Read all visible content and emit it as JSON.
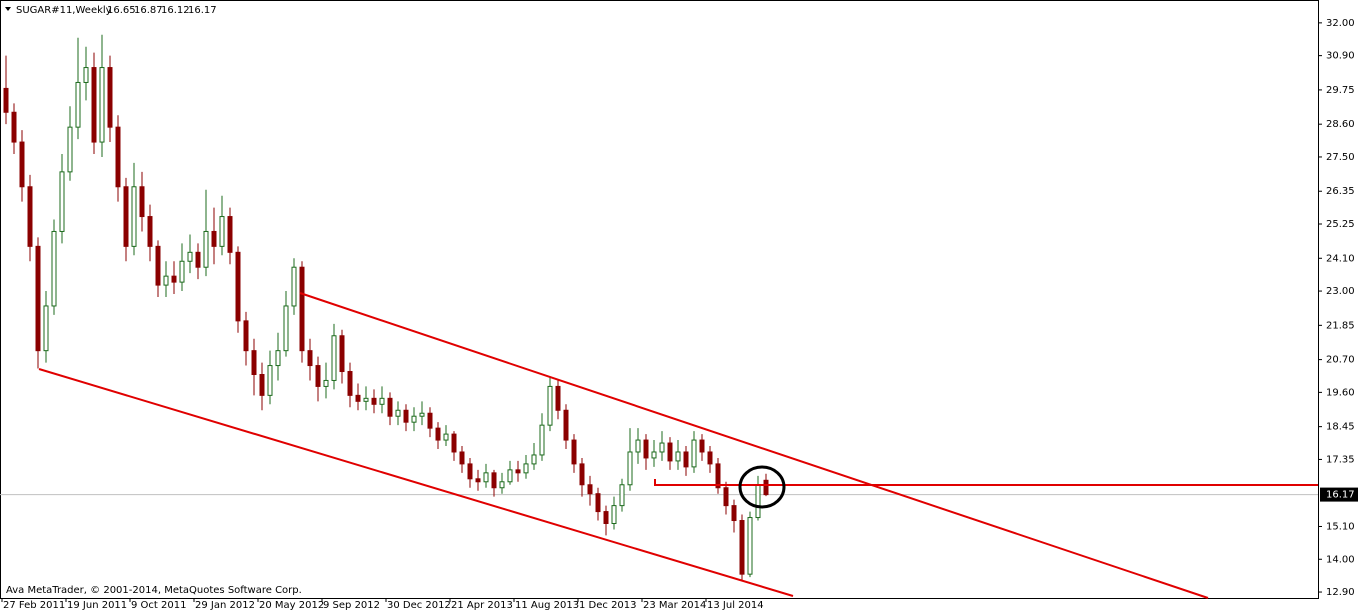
{
  "chart_data": {
    "type": "candlestick",
    "title": "SUGAR#11,Weekly",
    "ohlc": [
      16.65,
      16.87,
      16.12,
      16.17
    ],
    "last_price": 16.17,
    "footer": "Ava MetaTrader, © 2001-2014, MetaQuotes Software Corp.",
    "up_color": "#1d6b1d",
    "down_color": "#8b0000",
    "ylim": [
      12.7,
      32.7
    ],
    "yticks": [
      {
        "value": 12.9,
        "label": "12.90"
      },
      {
        "value": 14,
        "label": "14.00"
      },
      {
        "value": 15.1,
        "label": "15.10"
      },
      {
        "value": 17.35,
        "label": "17.35"
      },
      {
        "value": 18.45,
        "label": "18.45"
      },
      {
        "value": 19.6,
        "label": "19.60"
      },
      {
        "value": 20.7,
        "label": "20.70"
      },
      {
        "value": 21.85,
        "label": "21.85"
      },
      {
        "value": 23,
        "label": "23.00"
      },
      {
        "value": 24.1,
        "label": "24.10"
      },
      {
        "value": 25.25,
        "label": "25.25"
      },
      {
        "value": 26.35,
        "label": "26.35"
      },
      {
        "value": 27.5,
        "label": "27.50"
      },
      {
        "value": 28.6,
        "label": "28.60"
      },
      {
        "value": 29.75,
        "label": "29.75"
      },
      {
        "value": 30.9,
        "label": "30.90"
      },
      {
        "value": 32,
        "label": "32.00"
      }
    ],
    "categories": [
      "27 Feb 2011",
      null,
      null,
      null,
      null,
      null,
      null,
      null,
      "19 Jun 2011",
      null,
      null,
      null,
      null,
      null,
      null,
      null,
      "9 Oct 2011",
      null,
      null,
      null,
      null,
      null,
      null,
      null,
      "29 Jan 2012",
      null,
      null,
      null,
      null,
      null,
      null,
      null,
      "20 May 2012",
      null,
      null,
      null,
      null,
      null,
      null,
      null,
      "9 Sep 2012",
      null,
      null,
      null,
      null,
      null,
      null,
      null,
      "30 Dec 2012",
      null,
      null,
      null,
      null,
      null,
      null,
      null,
      "21 Apr 2013",
      null,
      null,
      null,
      null,
      null,
      null,
      null,
      "11 Aug 2013",
      null,
      null,
      null,
      null,
      null,
      null,
      null,
      "1 Dec 2013",
      null,
      null,
      null,
      null,
      null,
      null,
      null,
      "23 Mar 2014",
      null,
      null,
      null,
      null,
      null,
      null,
      null,
      "13 Jul 2014",
      null,
      null,
      null,
      null,
      null,
      null,
      null
    ],
    "open": [
      29.8,
      29.0,
      28.0,
      26.5,
      24.5,
      21.0,
      22.5,
      25.0,
      27.0,
      28.5,
      30.0,
      30.5,
      28.0,
      30.5,
      28.5,
      26.5,
      24.5,
      26.5,
      25.5,
      24.5,
      23.2,
      23.5,
      23.3,
      24.0,
      24.3,
      23.8,
      25.0,
      24.5,
      25.5,
      24.3,
      22.0,
      21.0,
      20.2,
      19.5,
      20.5,
      21.0,
      22.5,
      23.8,
      21.0,
      20.5,
      19.8,
      20.0,
      21.5,
      20.3,
      19.5,
      19.3,
      19.4,
      19.2,
      19.4,
      18.8,
      19.0,
      18.6,
      18.8,
      18.9,
      18.4,
      18.0,
      18.2,
      17.6,
      17.2,
      16.7,
      16.6,
      16.9,
      16.4,
      16.6,
      17.0,
      16.9,
      17.2,
      17.5,
      18.5,
      19.8,
      19.0,
      18.0,
      17.2,
      16.5,
      16.2,
      15.6,
      15.2,
      15.8,
      16.5,
      17.6,
      18.0,
      17.4,
      17.6,
      17.9,
      17.3,
      17.6,
      17.1,
      18.0,
      17.6,
      17.2,
      16.4,
      15.8,
      15.3,
      13.5,
      15.4,
      16.65
    ],
    "high": [
      30.9,
      29.3,
      28.4,
      26.9,
      24.8,
      23.0,
      25.4,
      27.6,
      29.2,
      31.5,
      31.2,
      31.0,
      31.6,
      30.9,
      28.9,
      26.8,
      27.3,
      27.0,
      25.9,
      24.7,
      24.0,
      24.0,
      24.6,
      24.9,
      24.6,
      26.4,
      25.8,
      26.2,
      25.8,
      24.5,
      22.3,
      21.4,
      20.6,
      21.0,
      21.6,
      23.0,
      24.1,
      24.0,
      21.4,
      20.8,
      20.6,
      21.9,
      21.7,
      20.6,
      19.9,
      19.8,
      19.7,
      19.8,
      19.6,
      19.3,
      19.2,
      19.1,
      19.3,
      19.1,
      18.6,
      18.5,
      18.3,
      17.8,
      17.4,
      17.0,
      17.2,
      17.0,
      16.9,
      17.3,
      17.3,
      17.5,
      17.9,
      18.9,
      20.1,
      20.0,
      19.2,
      18.2,
      17.4,
      16.8,
      16.4,
      15.8,
      16.1,
      16.7,
      18.4,
      18.4,
      18.2,
      18.0,
      18.3,
      18.1,
      18.0,
      17.8,
      18.3,
      18.2,
      17.8,
      17.4,
      16.6,
      16.0,
      15.5,
      15.6,
      16.8,
      16.87
    ],
    "low": [
      28.6,
      27.6,
      26.0,
      24.0,
      20.4,
      20.6,
      22.2,
      24.6,
      26.7,
      28.1,
      29.4,
      27.6,
      27.5,
      28.0,
      26.0,
      24.0,
      24.2,
      25.0,
      24.0,
      22.8,
      22.8,
      22.9,
      23.0,
      23.6,
      23.4,
      23.5,
      23.9,
      24.2,
      23.9,
      21.6,
      20.5,
      19.5,
      19.0,
      19.2,
      20.0,
      20.8,
      22.2,
      20.6,
      20.0,
      19.3,
      19.4,
      19.7,
      19.9,
      19.1,
      19.0,
      19.0,
      18.9,
      18.9,
      18.5,
      18.5,
      18.3,
      18.3,
      18.5,
      18.1,
      17.7,
      17.8,
      17.3,
      16.9,
      16.4,
      16.3,
      16.4,
      16.1,
      16.2,
      16.5,
      16.6,
      16.7,
      17.0,
      17.3,
      18.3,
      18.7,
      17.7,
      16.9,
      16.1,
      15.8,
      15.3,
      14.8,
      15.0,
      15.6,
      16.3,
      17.2,
      17.0,
      17.1,
      17.3,
      17.0,
      17.0,
      16.8,
      16.9,
      17.3,
      16.9,
      16.2,
      15.5,
      14.9,
      13.3,
      13.4,
      15.3,
      16.12
    ],
    "close": [
      29.0,
      28.0,
      26.5,
      24.5,
      21.0,
      22.5,
      25.0,
      27.0,
      28.5,
      30.0,
      30.5,
      28.0,
      30.5,
      28.5,
      26.5,
      24.5,
      26.5,
      25.5,
      24.5,
      23.2,
      23.5,
      23.3,
      24.0,
      24.3,
      23.8,
      25.0,
      24.5,
      25.5,
      24.3,
      22.0,
      21.0,
      20.2,
      19.5,
      20.5,
      21.0,
      22.5,
      23.8,
      21.0,
      20.5,
      19.8,
      20.0,
      21.5,
      20.3,
      19.5,
      19.3,
      19.4,
      19.2,
      19.4,
      18.8,
      19.0,
      18.6,
      18.8,
      18.9,
      18.4,
      18.0,
      18.2,
      17.6,
      17.2,
      16.7,
      16.6,
      16.9,
      16.4,
      16.6,
      17.0,
      16.9,
      17.2,
      17.5,
      18.5,
      19.8,
      19.0,
      18.0,
      17.2,
      16.5,
      16.2,
      15.6,
      15.2,
      15.8,
      16.5,
      17.6,
      18.0,
      17.4,
      17.6,
      17.9,
      17.3,
      17.6,
      17.1,
      18.0,
      17.6,
      17.2,
      16.4,
      15.8,
      15.3,
      13.5,
      15.4,
      16.5,
      16.17
    ]
  }
}
